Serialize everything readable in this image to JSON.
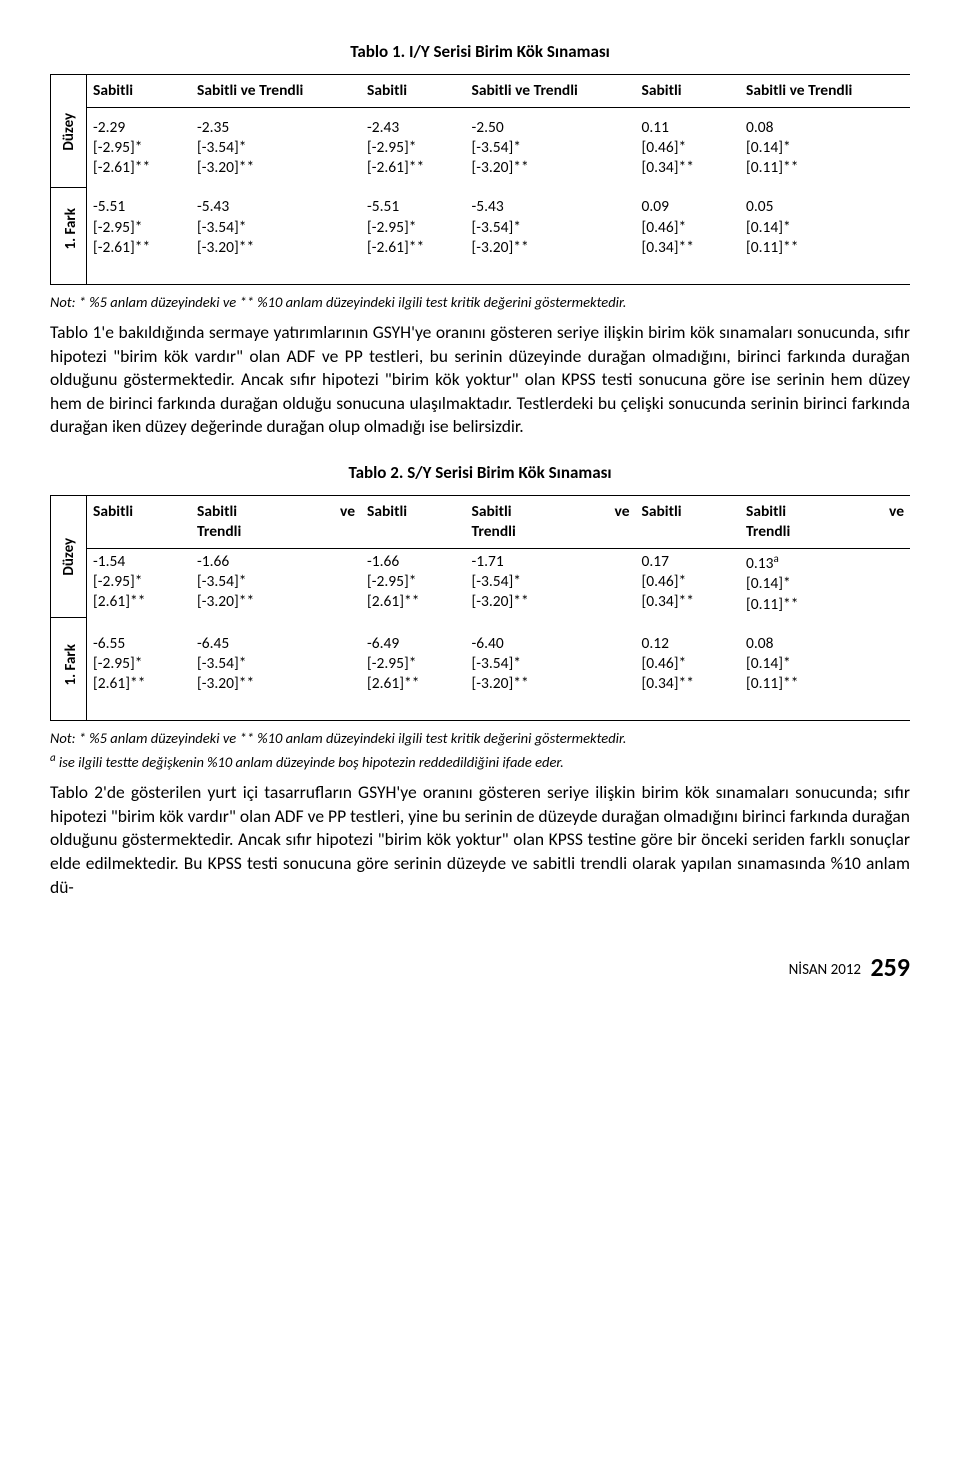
{
  "table1": {
    "title": "Tablo 1. I/Y Serisi Birim Kök Sınaması",
    "headers": [
      "Sabitli",
      "Sabitli ve Trendli",
      "Sabitli",
      "Sabitli ve Trendli",
      "Sabitli",
      "Sabitli ve Trendli"
    ],
    "rowLabels": [
      "Düzey",
      "1. Fark"
    ],
    "rows": [
      [
        "-2.29\n[-2.95]*\n[-2.61]**",
        "-2.35\n[-3.54]*\n[-3.20]**",
        "-2.43\n[-2.95]*\n[-2.61]**",
        "-2.50\n[-3.54]*\n[-3.20]**",
        "0.11\n[0.46]*\n[0.34]**",
        "0.08\n[0.14]*\n[0.11]**"
      ],
      [
        "-5.51\n[-2.95]*\n[-2.61]**",
        "-5.43\n[-3.54]*\n[-3.20]**",
        "-5.51\n[-2.95]*\n[-2.61]**",
        "-5.43\n[-3.54]*\n[-3.20]**",
        "0.09\n[0.46]*\n[0.34]**",
        "0.05\n[0.14]*\n[0.11]**"
      ]
    ],
    "note": "Not: * %5 anlam düzeyindeki ve ** %10 anlam düzeyindeki ilgili test kritik değerini göstermektedir."
  },
  "paragraph1": "Tablo 1'e bakıldığında sermaye yatırımlarının GSYH'ye oranını gösteren seriye ilişkin birim kök sınamaları sonucunda, sıfır hipotezi \"birim kök vardır\" olan ADF ve PP testleri, bu serinin düzeyinde durağan olmadığını, birinci farkında durağan olduğunu göstermektedir. Ancak sıfır hipotezi \"birim kök yoktur\" olan KPSS testi sonucuna göre ise serinin hem düzey hem de birinci farkında durağan olduğu sonucuna ulaşılmaktadır. Testlerdeki bu çelişki sonucunda serinin birinci farkında durağan iken düzey değerinde durağan olup olmadığı ise belirsizdir.",
  "table2": {
    "title": "Tablo 2. S/Y Serisi Birim Kök Sınaması",
    "headerPairs": [
      {
        "a": "Sabitli",
        "b": "Sabitli",
        "ve": "ve",
        "c": "Trendli"
      },
      {
        "a": "Sabitli",
        "b": "Sabitli",
        "ve": "ve",
        "c": "Trendli"
      },
      {
        "a": "Sabitli",
        "b": "Sabitli",
        "ve": "ve",
        "c": "Trendli"
      }
    ],
    "rowLabels": [
      "Düzey",
      "1. Fark"
    ],
    "rows": [
      [
        "-1.54\n[-2.95]*\n[2.61]**",
        "-1.66\n[-3.54]*\n[-3.20]**",
        "-1.66\n[-2.95]*\n[2.61]**",
        "-1.71\n[-3.54]*\n[-3.20]**",
        "0.17\n[0.46]*\n[0.34]**",
        "0.13ᵃ\n[0.14]*\n[0.11]**"
      ],
      [
        "-6.55\n[-2.95]*\n[2.61]**",
        "-6.45\n[-3.54]*\n[-3.20]**",
        "-6.49\n[-2.95]*\n[2.61]**",
        "-6.40\n[-3.54]*\n[-3.20]**",
        "0.12\n[0.46]*\n[0.34]**",
        "0.08\n[0.14]*\n[0.11]**"
      ]
    ],
    "note1": "Not: * %5 anlam düzeyindeki ve ** %10 anlam düzeyindeki ilgili test kritik değerini göstermektedir.",
    "note2": "ᵃ ise ilgili testte değişkenin %10 anlam düzeyinde boş hipotezin reddedildiğini ifade eder."
  },
  "paragraph2": "Tablo 2'de gösterilen yurt içi tasarrufların GSYH'ye oranını gösteren seriye ilişkin birim kök sınamaları sonucunda; sıfır hipotezi \"birim kök vardır\" olan ADF ve PP testleri, yine bu serinin de düzeyde durağan olmadığını birinci farkında durağan olduğunu göstermektedir. Ancak sıfır hipotezi \"birim kök yoktur\" olan KPSS testine göre bir önceki seriden farklı sonuçlar elde edilmektedir. Bu KPSS testi sonucuna göre serinin düzeyde ve sabitli trendli olarak yapılan sınamasında %10 anlam dü-",
  "footer": {
    "date": "NİSAN 2012",
    "page": "259"
  }
}
